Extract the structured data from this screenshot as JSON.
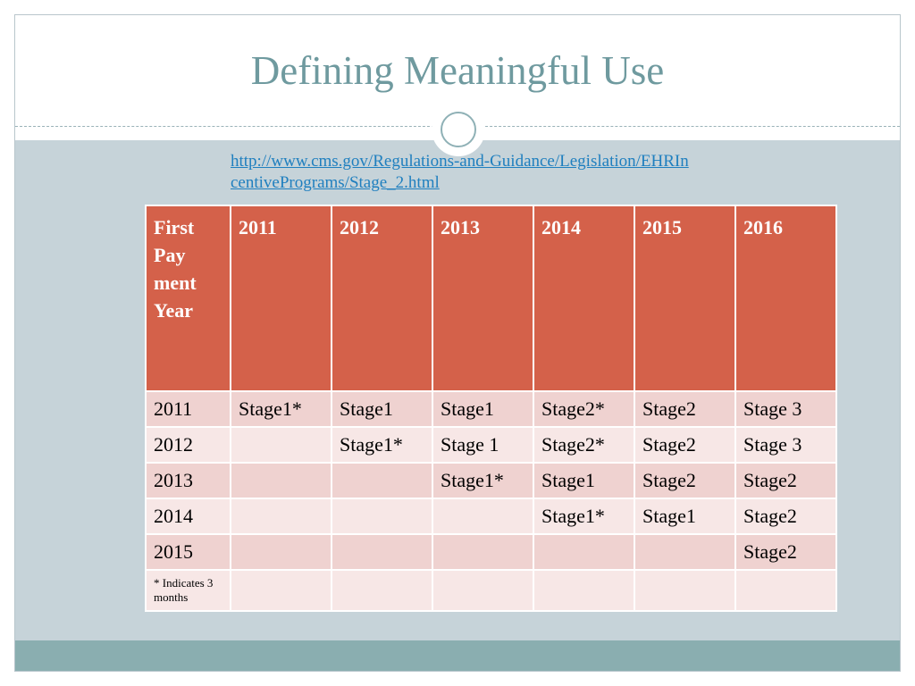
{
  "slide": {
    "title": "Defining Meaningful Use",
    "link_text": "http://www.cms.gov/Regulations-and-Guidance/Legislation/EHRIncentivePrograms/Stage_2.html"
  },
  "table": {
    "header": [
      "First Pay ment Year",
      "2011",
      "2012",
      "2013",
      "2014",
      "2015",
      "2016"
    ],
    "rows": [
      [
        "2011",
        "Stage1*",
        "Stage1",
        "Stage1",
        "Stage2*",
        "Stage2",
        "Stage 3"
      ],
      [
        "2012",
        "",
        "Stage1*",
        "Stage 1",
        "Stage2*",
        "Stage2",
        "Stage 3"
      ],
      [
        "2013",
        "",
        "",
        "Stage1*",
        "Stage1",
        "Stage2",
        "Stage2"
      ],
      [
        "2014",
        "",
        "",
        "",
        "Stage1*",
        "Stage1",
        "Stage2"
      ],
      [
        "2015",
        "",
        "",
        "",
        "",
        "",
        "Stage2"
      ]
    ],
    "footnote": "* Indicates 3 months"
  },
  "colors": {
    "title": "#6f9a9f",
    "header_bg": "#d4614a",
    "row_odd": "#efd2d0",
    "row_even": "#f7e7e6",
    "background": "#c6d3d9",
    "footer": "#8aaeb0",
    "link": "#1f7fbf"
  }
}
